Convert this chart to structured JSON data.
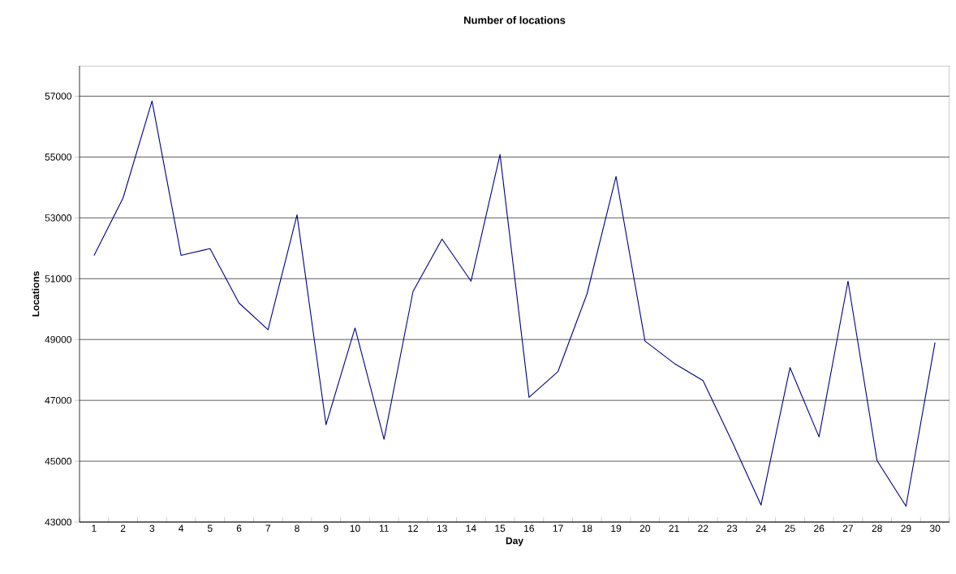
{
  "chart_data": {
    "type": "line",
    "title": "Number of locations",
    "xlabel": "Day",
    "ylabel": "Locations",
    "categories": [
      "1",
      "2",
      "3",
      "4",
      "5",
      "6",
      "7",
      "8",
      "9",
      "10",
      "11",
      "12",
      "13",
      "14",
      "15",
      "16",
      "17",
      "18",
      "19",
      "20",
      "21",
      "22",
      "23",
      "24",
      "25",
      "26",
      "27",
      "28",
      "29",
      "30"
    ],
    "series": [
      {
        "color": "#000080",
        "values": [
          51760,
          53650,
          56840,
          51770,
          51990,
          50200,
          49320,
          53100,
          46200,
          49380,
          45720,
          50580,
          52300,
          50920,
          55080,
          47100,
          47950,
          50500,
          54360,
          48950,
          48220,
          47650,
          45650,
          43560,
          48080,
          45800,
          50920,
          45020,
          43520,
          48900
        ]
      }
    ],
    "ylim": [
      43000,
      58000
    ],
    "yticks": [
      43000,
      45000,
      47000,
      49000,
      51000,
      53000,
      55000,
      57000
    ],
    "grid": "y"
  }
}
